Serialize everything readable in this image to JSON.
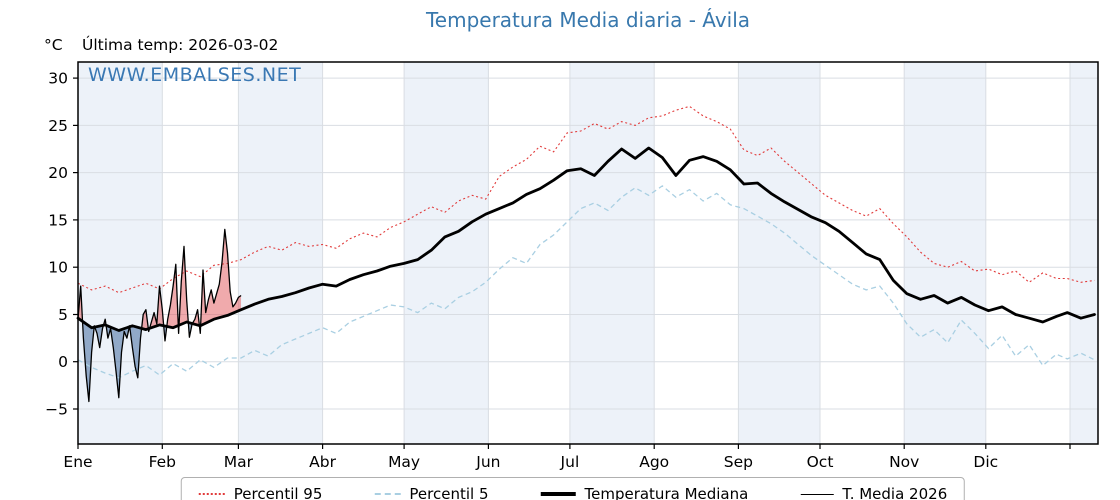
{
  "title": {
    "text": "Temperatura Media diaria - Ávila"
  },
  "axis_header": {
    "unit": "°C",
    "last_temp": "Última temp: 2026-03-02"
  },
  "watermark": {
    "text": "WWW.EMBALSES.NET"
  },
  "legend": [
    {
      "label": "Percentil 95",
      "style": "dotted",
      "color": "#e13b3b",
      "thickness": 2,
      "swatch_width": 26
    },
    {
      "label": "Percentil 5",
      "style": "dashed",
      "color": "#a9cfe2",
      "thickness": 2,
      "swatch_width": 26
    },
    {
      "label": "Temperatura Mediana",
      "style": "solid",
      "color": "#000000",
      "thickness": 4,
      "swatch_width": 35
    },
    {
      "label": "T. Media 2026",
      "style": "solid",
      "color": "#000000",
      "thickness": 1.5,
      "swatch_width": 33
    }
  ],
  "colors": {
    "title": "#3878ad",
    "watermark": "#3a78b3",
    "p95": "#e13b3b",
    "p5": "#a9cfe2",
    "median": "#000000",
    "t2026": "#000000",
    "fill_above_median": "rgba(225,85,90,0.5)",
    "fill_below_median": "rgba(70,110,160,0.55)",
    "month_band": "#edf2f9",
    "grid": "#d9dde3",
    "border": "#000000"
  },
  "chart_data": {
    "type": "line",
    "title": "Temperatura Media diaria - Ávila",
    "xlabel": "",
    "ylabel": "°C",
    "legend_position": "bottom",
    "grid": true,
    "ylim": [
      -8.7,
      31.7
    ],
    "xlim": [
      1,
      376.3
    ],
    "yticks": [
      {
        "v": 30,
        "label": "30"
      },
      {
        "v": 25,
        "label": "25"
      },
      {
        "v": 20,
        "label": "20"
      },
      {
        "v": 15,
        "label": "15"
      },
      {
        "v": 10,
        "label": "10"
      },
      {
        "v": 5,
        "label": "5"
      },
      {
        "v": 0,
        "label": "0"
      },
      {
        "v": -5,
        "label": "−5"
      }
    ],
    "x_unit": "day_of_year",
    "month_ticks": [
      "Ene",
      "Feb",
      "Mar",
      "Abr",
      "May",
      "Jun",
      "Jul",
      "Ago",
      "Sep",
      "Oct",
      "Nov",
      "Dic"
    ],
    "month_start_days": [
      1,
      32,
      60,
      91,
      121,
      152,
      182,
      213,
      244,
      274,
      305,
      335
    ],
    "year_end_day": 366,
    "shaded_months": [
      "Ene",
      "Mar",
      "May",
      "Jul",
      "Sep",
      "Nov"
    ],
    "x_climatology": [
      1,
      6,
      11,
      16,
      21,
      26,
      31,
      36,
      41,
      46,
      51,
      56,
      61,
      66,
      71,
      76,
      81,
      86,
      91,
      96,
      101,
      106,
      111,
      116,
      121,
      126,
      131,
      136,
      141,
      146,
      151,
      156,
      161,
      166,
      171,
      176,
      181,
      186,
      191,
      196,
      201,
      206,
      211,
      216,
      221,
      226,
      231,
      236,
      241,
      246,
      251,
      256,
      261,
      266,
      271,
      276,
      281,
      286,
      291,
      296,
      301,
      306,
      311,
      316,
      321,
      326,
      331,
      336,
      341,
      346,
      351,
      356,
      361,
      365,
      370,
      375
    ],
    "series": [
      {
        "name": "Percentil 95",
        "values": [
          8.3,
          7.6,
          8.0,
          7.3,
          7.8,
          8.3,
          7.7,
          8.8,
          9.6,
          9.0,
          10.2,
          10.4,
          10.8,
          11.6,
          12.2,
          11.8,
          12.6,
          12.2,
          12.4,
          12.0,
          13.0,
          13.6,
          13.2,
          14.2,
          14.8,
          15.6,
          16.4,
          15.8,
          17.0,
          17.6,
          17.2,
          19.6,
          20.6,
          21.4,
          22.8,
          22.2,
          24.2,
          24.4,
          25.2,
          24.6,
          25.4,
          25.0,
          25.8,
          26.0,
          26.6,
          27.0,
          26.0,
          25.4,
          24.6,
          22.4,
          21.8,
          22.6,
          21.2,
          20.0,
          18.8,
          17.6,
          16.8,
          16.0,
          15.4,
          16.2,
          14.6,
          13.2,
          11.6,
          10.4,
          10.0,
          10.6,
          9.6,
          9.8,
          9.2,
          9.6,
          8.4,
          9.4,
          8.8,
          8.8,
          8.4,
          8.6
        ]
      },
      {
        "name": "Percentil 5",
        "values": [
          0.2,
          -0.6,
          -1.2,
          -1.7,
          -1.0,
          -0.4,
          -1.4,
          -0.2,
          -1.0,
          0.2,
          -0.6,
          0.4,
          0.4,
          1.2,
          0.6,
          1.8,
          2.4,
          3.0,
          3.6,
          3.0,
          4.2,
          4.8,
          5.4,
          6.0,
          5.8,
          5.2,
          6.2,
          5.6,
          6.8,
          7.4,
          8.4,
          9.8,
          11.0,
          10.4,
          12.4,
          13.4,
          14.8,
          16.2,
          16.8,
          16.0,
          17.4,
          18.4,
          17.6,
          18.6,
          17.4,
          18.2,
          17.0,
          17.8,
          16.6,
          16.2,
          15.4,
          14.6,
          13.6,
          12.4,
          11.2,
          10.2,
          9.2,
          8.2,
          7.6,
          8.0,
          6.2,
          4.0,
          2.6,
          3.4,
          2.0,
          4.4,
          3.0,
          1.4,
          2.8,
          0.6,
          1.8,
          -0.4,
          0.8,
          0.3,
          0.9,
          0.2
        ]
      },
      {
        "name": "Temperatura Mediana",
        "values": [
          4.6,
          3.6,
          3.9,
          3.3,
          3.8,
          3.4,
          3.9,
          3.6,
          4.2,
          3.8,
          4.5,
          4.9,
          5.5,
          6.1,
          6.6,
          6.9,
          7.3,
          7.8,
          8.2,
          8.0,
          8.7,
          9.2,
          9.6,
          10.1,
          10.4,
          10.8,
          11.8,
          13.2,
          13.8,
          14.8,
          15.6,
          16.2,
          16.8,
          17.7,
          18.3,
          19.2,
          20.2,
          20.4,
          19.7,
          21.2,
          22.5,
          21.5,
          22.6,
          21.6,
          19.7,
          21.3,
          21.7,
          21.2,
          20.3,
          18.8,
          18.9,
          17.8,
          16.9,
          16.1,
          15.3,
          14.7,
          13.8,
          12.6,
          11.4,
          10.8,
          8.6,
          7.2,
          6.6,
          7.0,
          6.2,
          6.8,
          6.0,
          5.4,
          5.8,
          5.0,
          4.6,
          4.2,
          4.8,
          5.2,
          4.6,
          5.0
        ]
      },
      {
        "name": "T. Media 2026",
        "x_start_day": 1,
        "x_end_day": 61,
        "values": [
          4.5,
          8.0,
          2.5,
          -1.5,
          -4.2,
          1.0,
          3.8,
          3.0,
          1.5,
          3.5,
          4.5,
          2.5,
          3.5,
          1.5,
          -1.0,
          -3.8,
          1.0,
          3.2,
          2.5,
          3.8,
          1.5,
          -0.5,
          -1.7,
          2.5,
          5.0,
          5.5,
          3.2,
          4.2,
          5.2,
          4.0,
          8.0,
          5.5,
          2.2,
          4.5,
          6.0,
          8.0,
          10.3,
          3.0,
          8.5,
          12.2,
          6.5,
          2.6,
          4.0,
          4.5,
          5.5,
          3.0,
          9.7,
          5.2,
          6.6,
          7.6,
          6.2,
          7.2,
          8.2,
          10.5,
          14.0,
          11.5,
          7.4,
          5.8,
          6.2,
          6.8,
          7.0
        ]
      }
    ]
  }
}
